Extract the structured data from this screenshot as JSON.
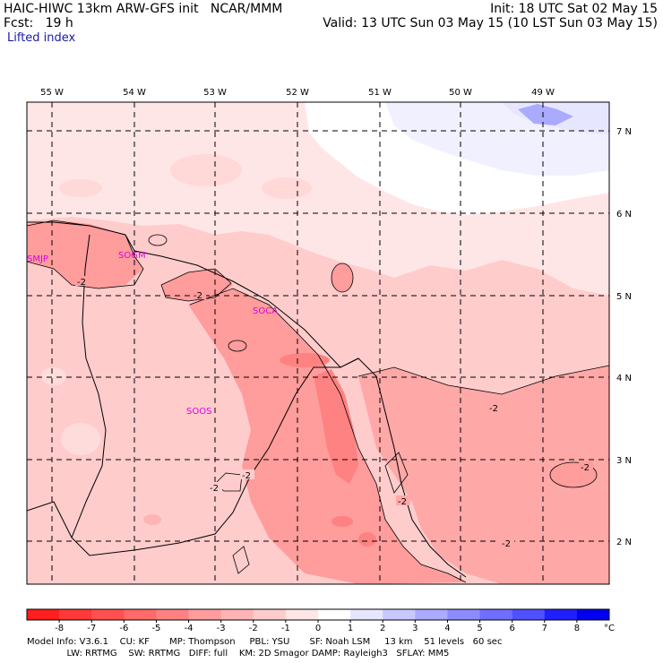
{
  "header": {
    "left_line1": "HAIC-HIWC 13km ARW-GFS init   NCAR/MMM",
    "left_line2": "Fcst:   19 h",
    "right_line1": "Init: 18 UTC Sat 02 May 15",
    "right_line2": "Valid: 13 UTC Sun 03 May 15 (10 LST Sun 03 May 15)",
    "field": "Lifted index"
  },
  "map": {
    "lon_labels": [
      "55 W",
      "54 W",
      "53 W",
      "52 W",
      "51 W",
      "50 W",
      "49 W"
    ],
    "lat_labels": [
      "7 N",
      "6 N",
      "5 N",
      "4 N",
      "3 N",
      "2 N"
    ],
    "stations": [
      "SMJP",
      "SOGM",
      "SOCA",
      "SOOS"
    ],
    "contour_label": "-2"
  },
  "colorbar": {
    "unit": "°C",
    "labels": [
      "-8",
      "-7",
      "-6",
      "-5",
      "-4",
      "-3",
      "-2",
      "-1",
      "0",
      "1",
      "2",
      "3",
      "4",
      "5",
      "6",
      "7",
      "8"
    ],
    "colors": [
      "#ff1e1e",
      "#ff3838",
      "#ff5050",
      "#ff6a6a",
      "#ff8282",
      "#ff9c9c",
      "#ffb4b4",
      "#ffcccc",
      "#ffe6e6",
      "#ffffff",
      "#e6e6ff",
      "#c8c8ff",
      "#aaaaff",
      "#8c8cff",
      "#6e6eff",
      "#5050ff",
      "#2020ff",
      "#0000f0"
    ]
  },
  "footer": {
    "line1": "Model Info: V3.6.1    CU: KF       MP: Thompson     PBL: YSU       SF: Noah LSM     13 km    51 levels   60 sec",
    "line2": "              LW: RRTMG    SW: RRTMG   DIFF: full    KM: 2D Smagor DAMP: Rayleigh3   SFLAY: MM5"
  }
}
